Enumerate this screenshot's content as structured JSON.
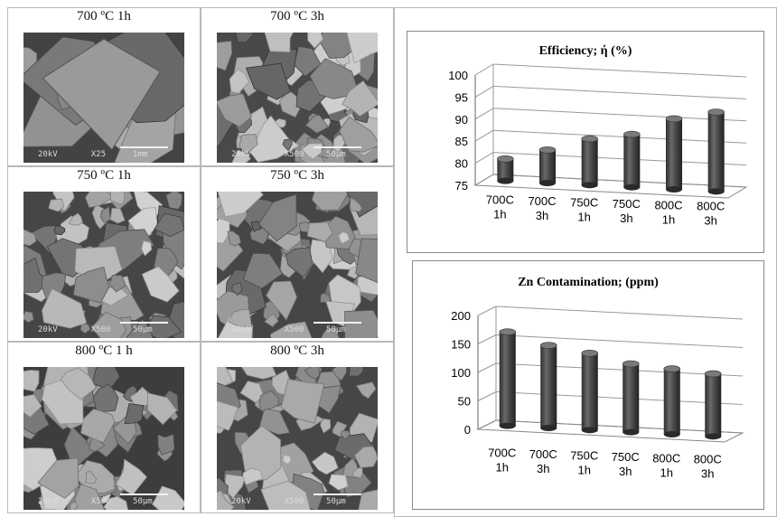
{
  "panels": [
    {
      "caption": "700 ºC 1h",
      "kv": "20kV",
      "mag": "X25",
      "bar": "1mm",
      "tone": 0.45
    },
    {
      "caption": "700 ºC 3h",
      "kv": "20kV",
      "mag": "X500",
      "bar": "50µm",
      "tone": 0.55
    },
    {
      "caption": "750 ºC 1h",
      "kv": "20kV",
      "mag": "X500",
      "bar": "50µm",
      "tone": 0.5
    },
    {
      "caption": "750 ºC 3h",
      "kv": "20kV",
      "mag": "X500",
      "bar": "50µm",
      "tone": 0.5
    },
    {
      "caption": "800 ºC 1 h",
      "kv": "20kV",
      "mag": "X500",
      "bar": "50µm",
      "tone": 0.35
    },
    {
      "caption": "800 ºC 3h",
      "kv": "20kV",
      "mag": "X500",
      "bar": "50µm",
      "tone": 0.5
    }
  ],
  "chart_data": [
    {
      "type": "bar",
      "title": "Efficiency; ή (%)",
      "categories": [
        [
          "700C",
          "1h"
        ],
        [
          "700C",
          "3h"
        ],
        [
          "750C",
          "1h"
        ],
        [
          "750C",
          "3h"
        ],
        [
          "800C",
          "1h"
        ],
        [
          "800C",
          "3h"
        ]
      ],
      "values": [
        80,
        82.5,
        85.5,
        87,
        91,
        93
      ],
      "ylim": [
        75,
        100
      ],
      "yticks": [
        75,
        80,
        85,
        90,
        95,
        100
      ],
      "grid": true,
      "bar_color": "#4a4a4a",
      "style": "3d-cylinder"
    },
    {
      "type": "bar",
      "title": "Zn Contamination; (ppm)",
      "categories": [
        [
          "700C",
          "1h"
        ],
        [
          "700C",
          "3h"
        ],
        [
          "750C",
          "1h"
        ],
        [
          "750C",
          "3h"
        ],
        [
          "800C",
          "1h"
        ],
        [
          "800C",
          "3h"
        ]
      ],
      "values": [
        165,
        145,
        135,
        120,
        115,
        110
      ],
      "ylim": [
        0,
        200
      ],
      "yticks": [
        0,
        50,
        100,
        150,
        200
      ],
      "grid": true,
      "bar_color": "#4a4a4a",
      "style": "3d-cylinder"
    }
  ]
}
